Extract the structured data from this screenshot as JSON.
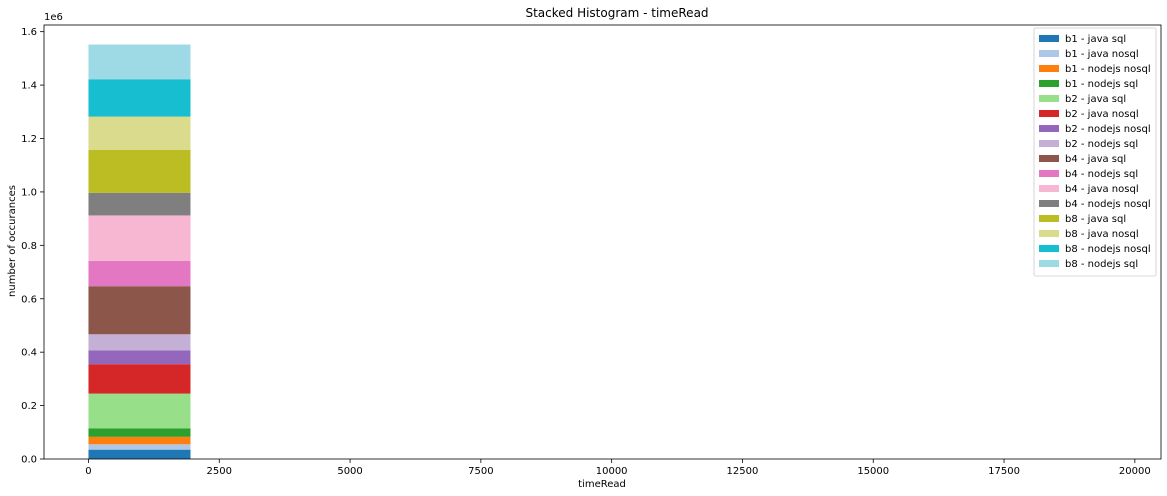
{
  "chart_data": {
    "type": "bar",
    "stacked": true,
    "title": "Stacked Histogram - timeRead",
    "xlabel": "timeRead",
    "ylabel": "number of occurances",
    "y_offset_label": "1e6",
    "xlim": [
      -850,
      20500
    ],
    "ylim": [
      0,
      1.625
    ],
    "x_ticks": [
      0,
      2500,
      5000,
      7500,
      10000,
      12500,
      15000,
      17500,
      20000
    ],
    "x_tick_labels": [
      "0",
      "2500",
      "5000",
      "7500",
      "10000",
      "12500",
      "15000",
      "17500",
      "20000"
    ],
    "y_ticks": [
      0,
      0.2,
      0.4,
      0.6,
      0.8,
      1.0,
      1.2,
      1.4,
      1.6
    ],
    "y_tick_labels": [
      "0.0",
      "0.2",
      "0.4",
      "0.6",
      "0.8",
      "1.0",
      "1.2",
      "1.4",
      "1.6"
    ],
    "bin": [
      0,
      1950
    ],
    "legend_position": "top-right",
    "grid": false,
    "series": [
      {
        "name": "b1 - java sql",
        "value": 0.035,
        "color": "#1f77b4"
      },
      {
        "name": "b1 - java nosql",
        "value": 0.02,
        "color": "#aec7e8"
      },
      {
        "name": "b1 - nodejs nosql",
        "value": 0.028,
        "color": "#ff7f0e"
      },
      {
        "name": "b1 - nodejs sql",
        "value": 0.032,
        "color": "#2ca02c"
      },
      {
        "name": "b2 - java sql",
        "value": 0.13,
        "color": "#98df8a"
      },
      {
        "name": "b2 - java nosql",
        "value": 0.11,
        "color": "#d62728"
      },
      {
        "name": "b2 - nodejs nosql",
        "value": 0.052,
        "color": "#9467bd"
      },
      {
        "name": "b2 - nodejs sql",
        "value": 0.06,
        "color": "#c5b0d5"
      },
      {
        "name": "b4 - java sql",
        "value": 0.18,
        "color": "#8c564b"
      },
      {
        "name": "b4 - nodejs sql",
        "value": 0.095,
        "color": "#e377c2"
      },
      {
        "name": "b4 - java nosql",
        "value": 0.17,
        "color": "#f7b6d2"
      },
      {
        "name": "b4 - nodejs nosql",
        "value": 0.085,
        "color": "#7f7f7f"
      },
      {
        "name": "b8 - java sql",
        "value": 0.16,
        "color": "#bcbd22"
      },
      {
        "name": "b8 - java nosql",
        "value": 0.125,
        "color": "#dbdb8d"
      },
      {
        "name": "b8 - nodejs nosql",
        "value": 0.14,
        "color": "#17becf"
      },
      {
        "name": "b8 - nodejs sql",
        "value": 0.13,
        "color": "#9edae5"
      }
    ]
  }
}
